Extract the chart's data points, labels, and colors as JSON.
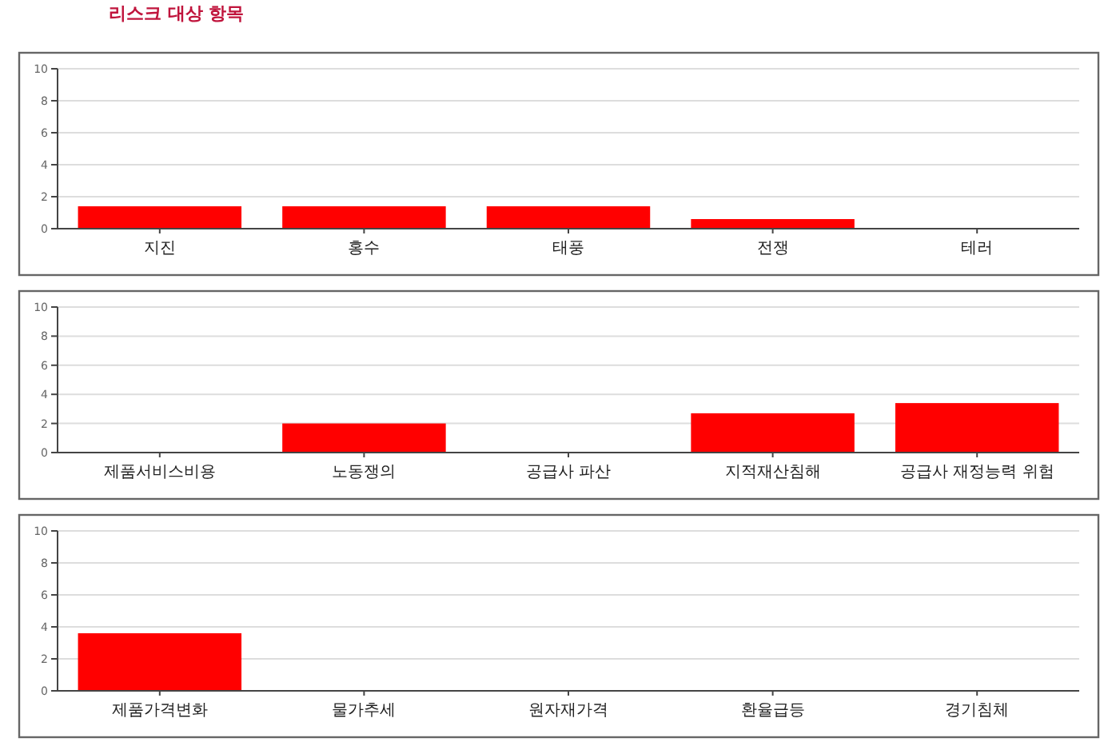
{
  "chart_data": [
    {
      "type": "bar",
      "title": "리스크 대상 항목",
      "categories": [
        "지진",
        "홍수",
        "태풍",
        "전쟁",
        "테러"
      ],
      "values": [
        1.4,
        1.4,
        1.4,
        0.6,
        0
      ],
      "color": "#ff0000",
      "ylim": [
        0,
        10
      ],
      "yticks": [
        0,
        2,
        4,
        6,
        8,
        10
      ],
      "grid": "y"
    },
    {
      "type": "bar",
      "categories": [
        "제품서비스비용",
        "노동쟁의",
        "공급사 파산",
        "지적재산침해",
        "공급사 재정능력 위험"
      ],
      "values": [
        0,
        2,
        0,
        2.7,
        3.4
      ],
      "color": "#ff0000",
      "ylim": [
        0,
        10
      ],
      "yticks": [
        0,
        2,
        4,
        6,
        8,
        10
      ],
      "grid": "y"
    },
    {
      "type": "bar",
      "categories": [
        "제품가격변화",
        "물가추세",
        "원자재가격",
        "환율급등",
        "경기침체"
      ],
      "values": [
        3.6,
        0,
        0,
        0,
        0
      ],
      "color": "#ff0000",
      "ylim": [
        0,
        10
      ],
      "yticks": [
        0,
        2,
        4,
        6,
        8,
        10
      ],
      "grid": "y"
    }
  ]
}
